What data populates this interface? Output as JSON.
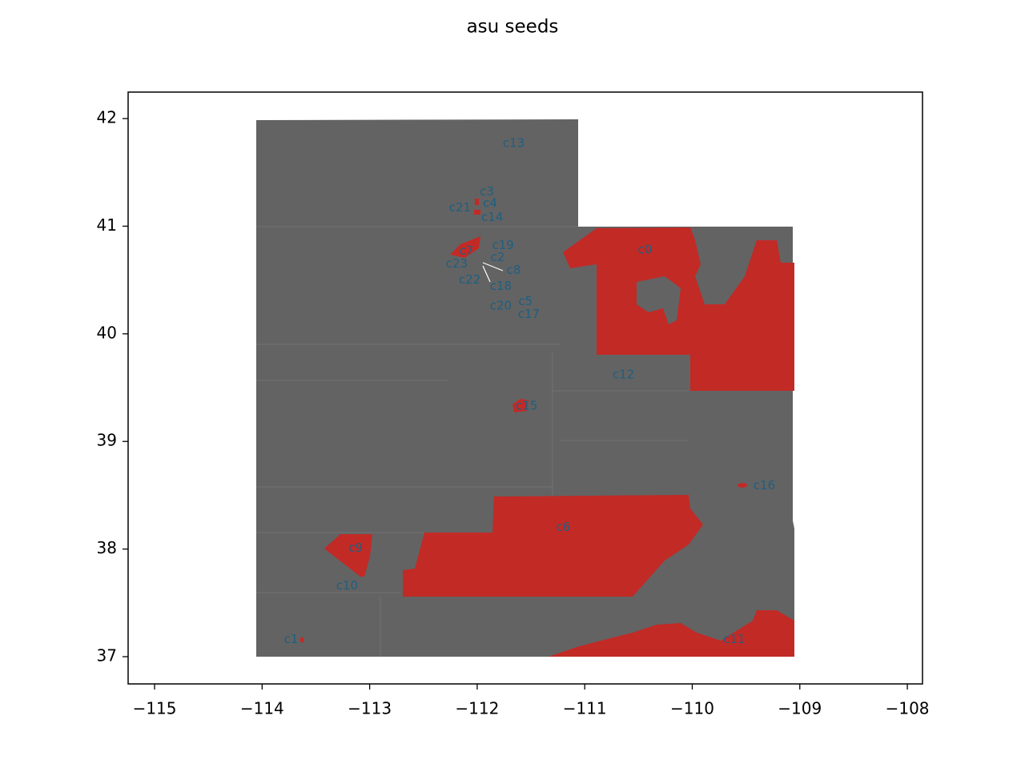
{
  "chart_data": {
    "type": "map",
    "title": "asu seeds",
    "xlim": [
      -115.246,
      -107.859
    ],
    "ylim": [
      36.747,
      42.246
    ],
    "xticks": [
      {
        "value": -115,
        "label": "−115"
      },
      {
        "value": -114,
        "label": "−114"
      },
      {
        "value": -113,
        "label": "−113"
      },
      {
        "value": -112,
        "label": "−112"
      },
      {
        "value": -111,
        "label": "−111"
      },
      {
        "value": -110,
        "label": "−110"
      },
      {
        "value": -109,
        "label": "−109"
      },
      {
        "value": -108,
        "label": "−108"
      }
    ],
    "yticks": [
      37,
      38,
      39,
      40,
      41,
      42
    ],
    "label_color": "#1f5f80",
    "labels": [
      {
        "text": "c0",
        "x": -110.44,
        "y": 40.78
      },
      {
        "text": "c13",
        "x": -111.66,
        "y": 41.77
      },
      {
        "text": "c3",
        "x": -111.91,
        "y": 41.32
      },
      {
        "text": "c4",
        "x": -111.88,
        "y": 41.21
      },
      {
        "text": "c21",
        "x": -112.16,
        "y": 41.17
      },
      {
        "text": "c14",
        "x": -111.86,
        "y": 41.08
      },
      {
        "text": "c19",
        "x": -111.76,
        "y": 40.82
      },
      {
        "text": "c7",
        "x": -112.1,
        "y": 40.77
      },
      {
        "text": "c2",
        "x": -111.81,
        "y": 40.71
      },
      {
        "text": "c23",
        "x": -112.19,
        "y": 40.65
      },
      {
        "text": "c8",
        "x": -111.66,
        "y": 40.59
      },
      {
        "text": "c22",
        "x": -112.07,
        "y": 40.5
      },
      {
        "text": "c18",
        "x": -111.78,
        "y": 40.44
      },
      {
        "text": "c5",
        "x": -111.55,
        "y": 40.3
      },
      {
        "text": "c20",
        "x": -111.78,
        "y": 40.26
      },
      {
        "text": "c17",
        "x": -111.52,
        "y": 40.18
      },
      {
        "text": "c12",
        "x": -110.64,
        "y": 39.62
      },
      {
        "text": "c15",
        "x": -111.54,
        "y": 39.33
      },
      {
        "text": "c16",
        "x": -109.33,
        "y": 38.59
      },
      {
        "text": "c6",
        "x": -111.2,
        "y": 38.2
      },
      {
        "text": "c9",
        "x": -113.13,
        "y": 38.01
      },
      {
        "text": "c10",
        "x": -113.21,
        "y": 37.66
      },
      {
        "text": "c11",
        "x": -109.61,
        "y": 37.16
      },
      {
        "text": "c1",
        "x": -113.73,
        "y": 37.16
      }
    ]
  }
}
